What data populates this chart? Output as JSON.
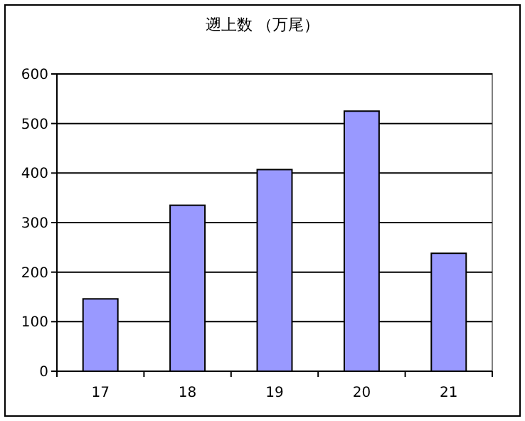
{
  "chart_data": {
    "type": "bar",
    "title": "遡上数 （万尾）",
    "categories": [
      "17",
      "18",
      "19",
      "20",
      "21"
    ],
    "values": [
      146,
      335,
      407,
      525,
      238
    ],
    "color": "#9999ff",
    "ylim": [
      0,
      600
    ],
    "yticks": [
      0,
      100,
      200,
      300,
      400,
      500,
      600
    ],
    "grid": "y"
  }
}
